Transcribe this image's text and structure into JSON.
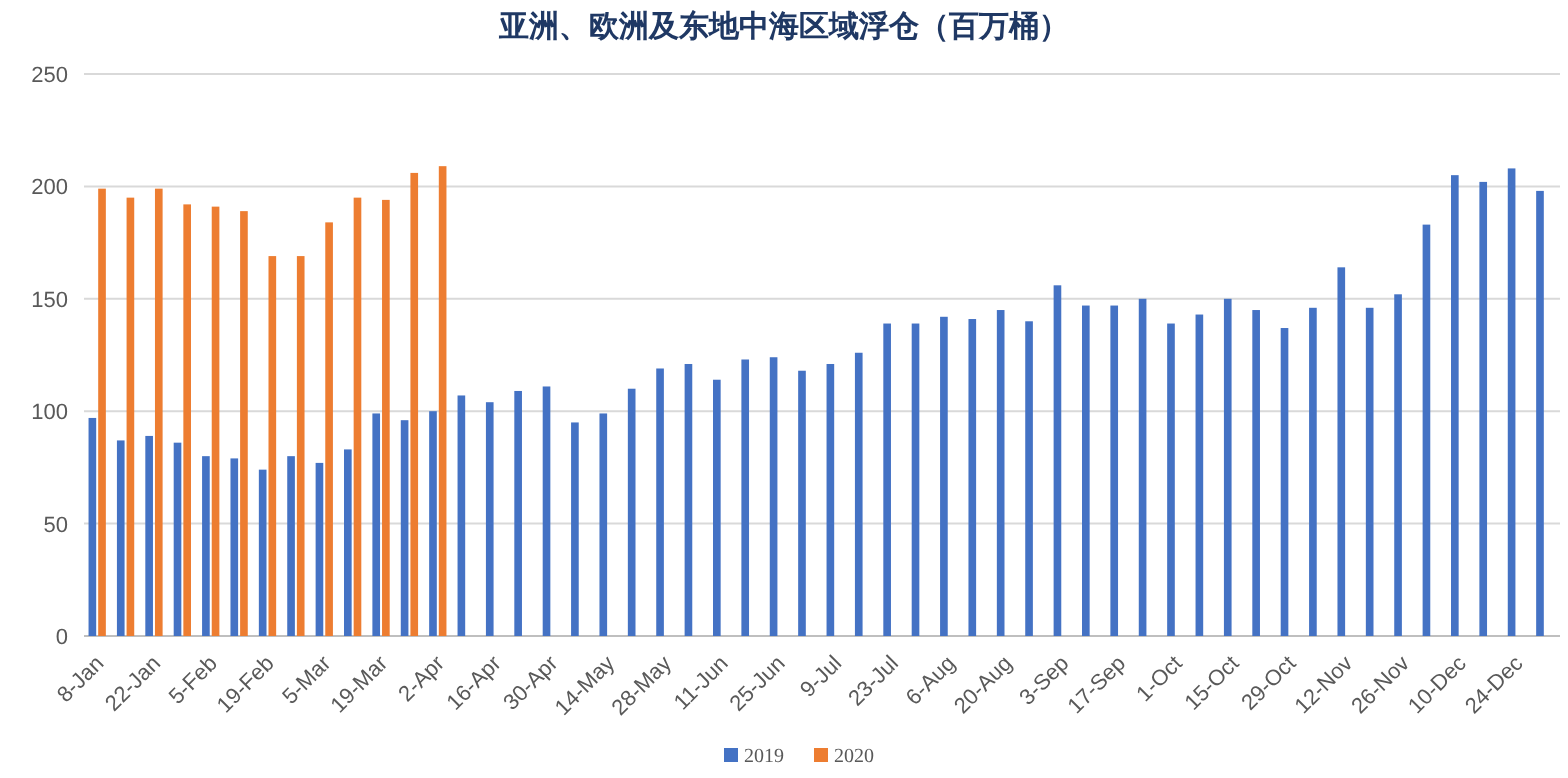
{
  "chart_data": {
    "type": "bar",
    "title": "亚洲、欧洲及东地中海区域浮仓（百万桶）",
    "categories": [
      "8-Jan",
      null,
      "22-Jan",
      null,
      "5-Feb",
      null,
      "19-Feb",
      null,
      "5-Mar",
      null,
      "19-Mar",
      null,
      "2-Apr",
      null,
      "16-Apr",
      null,
      "30-Apr",
      null,
      "14-May",
      null,
      "28-May",
      null,
      "11-Jun",
      null,
      "25-Jun",
      null,
      "9-Jul",
      null,
      "23-Jul",
      null,
      "6-Aug",
      null,
      "20-Aug",
      null,
      "3-Sep",
      null,
      "17-Sep",
      null,
      "1-Oct",
      null,
      "15-Oct",
      null,
      "29-Oct",
      null,
      "12-Nov",
      null,
      "26-Nov",
      null,
      "10-Dec",
      null,
      "24-Dec",
      null
    ],
    "series": [
      {
        "name": "2019",
        "color": "#4472c4",
        "values": [
          97,
          87,
          89,
          86,
          80,
          79,
          74,
          80,
          77,
          83,
          99,
          96,
          100,
          107,
          104,
          109,
          111,
          95,
          99,
          110,
          119,
          121,
          114,
          123,
          124,
          118,
          121,
          126,
          139,
          139,
          142,
          141,
          145,
          140,
          156,
          147,
          147,
          150,
          139,
          143,
          150,
          145,
          137,
          146,
          164,
          146,
          152,
          183,
          205,
          202,
          208,
          198
        ]
      },
      {
        "name": "2020",
        "color": "#ed7d31",
        "values": [
          199,
          195,
          199,
          192,
          191,
          189,
          169,
          169,
          184,
          195,
          194,
          206,
          209,
          null,
          null,
          null,
          null,
          null,
          null,
          null,
          null,
          null,
          null,
          null,
          null,
          null,
          null,
          null,
          null,
          null,
          null,
          null,
          null,
          null,
          null,
          null,
          null,
          null,
          null,
          null,
          null,
          null,
          null,
          null,
          null,
          null,
          null,
          null,
          null,
          null,
          null,
          null
        ]
      }
    ],
    "ylim": [
      0,
      250
    ],
    "yticks": [
      0,
      50,
      100,
      150,
      200,
      250
    ],
    "grid": "y",
    "legend": "bottom"
  }
}
